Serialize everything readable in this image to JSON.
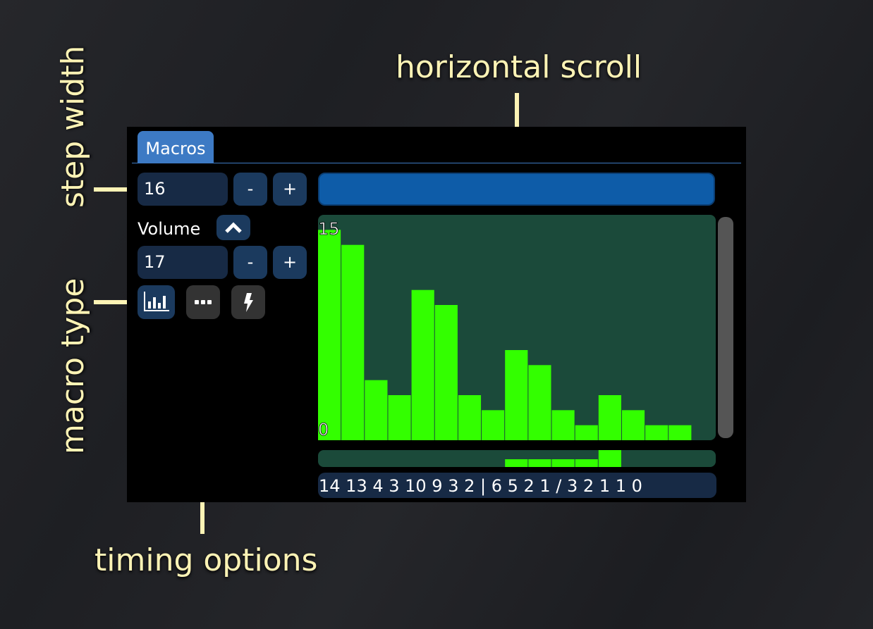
{
  "annotations": {
    "step_width": "step width",
    "macro_type": "macro type",
    "timing_options": "timing options",
    "horizontal_scroll": "horizontal scroll"
  },
  "tab": {
    "label": "Macros"
  },
  "step_width": {
    "value": "16",
    "minus": "-",
    "plus": "+"
  },
  "macro": {
    "name": "Volume",
    "collapse_icon": "chevron-up-icon",
    "length": "17",
    "minus": "-",
    "plus": "+"
  },
  "type_buttons": [
    {
      "icon": "bar-chart-icon",
      "active": true
    },
    {
      "icon": "more-dots-icon",
      "active": false
    },
    {
      "icon": "lightning-icon",
      "active": false
    }
  ],
  "colors": {
    "bar": "#33ff00",
    "graph_bg": "#1b4a3a",
    "accent": "#3d7ac4"
  },
  "chart_data": {
    "type": "bar",
    "values": [
      14,
      13,
      4,
      3,
      10,
      9,
      3,
      2,
      6,
      5,
      2,
      1,
      3,
      2,
      1,
      1,
      0
    ],
    "ylim": [
      0,
      15
    ],
    "max_label": "15",
    "min_label": "0",
    "loop_start": 8,
    "release": 12
  },
  "sequence_text": "14 13 4 3 10 9 3 2 | 6 5 2 1 / 3 2 1 1 0"
}
